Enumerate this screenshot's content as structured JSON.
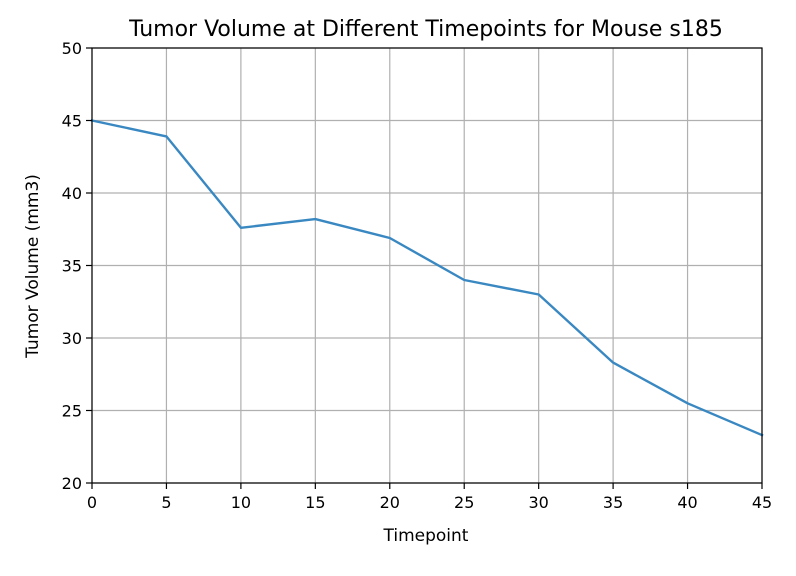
{
  "chart_data": {
    "type": "line",
    "title": "Tumor Volume at Different Timepoints for Mouse s185",
    "xlabel": "Timepoint",
    "ylabel": "Tumor Volume (mm3)",
    "xlim": [
      0,
      45
    ],
    "ylim": [
      20,
      50
    ],
    "xticks": [
      0,
      5,
      10,
      15,
      20,
      25,
      30,
      35,
      40,
      45
    ],
    "yticks": [
      20,
      25,
      30,
      35,
      40,
      45,
      50
    ],
    "grid": true,
    "series": [
      {
        "color": "#3a88c2",
        "x": [
          0,
          5,
          10,
          15,
          20,
          25,
          30,
          35,
          40,
          45
        ],
        "y": [
          45.0,
          43.9,
          37.6,
          38.2,
          36.9,
          34.0,
          33.0,
          28.3,
          25.5,
          23.3
        ]
      }
    ]
  }
}
